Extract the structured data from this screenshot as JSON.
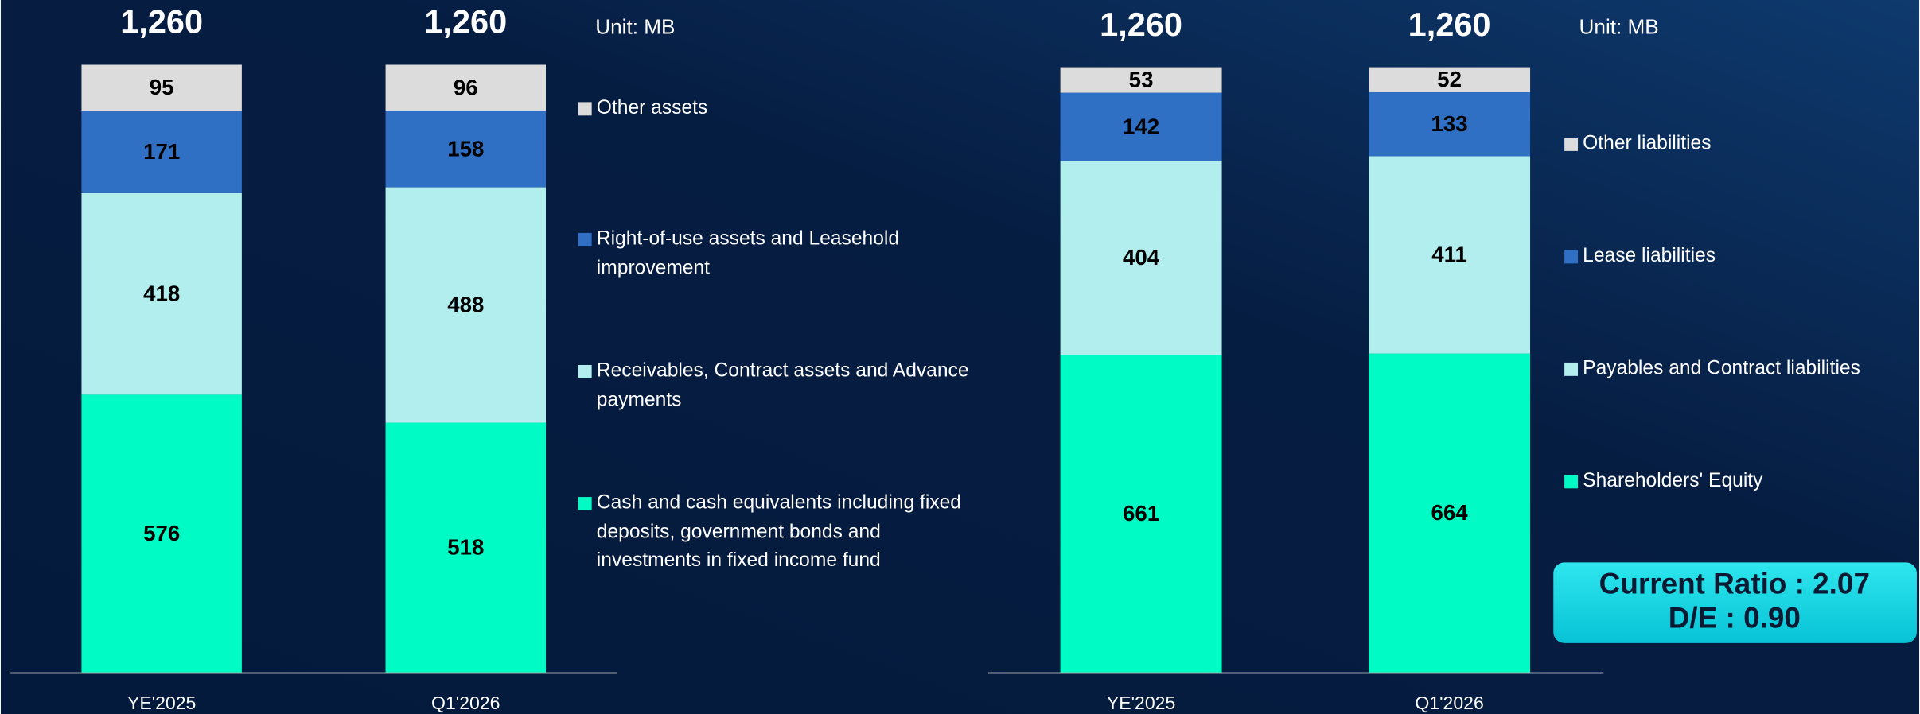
{
  "chart_data": [
    {
      "type": "stacked_bar",
      "unit": "Unit: MB",
      "categories": [
        "YE'2025",
        "Q1'2026"
      ],
      "totals": [
        1260,
        1260
      ],
      "total_labels": [
        "1,260",
        "1,260"
      ],
      "ylim": [
        0,
        1260
      ],
      "series": [
        {
          "name": "Cash and cash equivalents including fixed deposits, government bonds and investments in fixed income fund",
          "color": "#00fcc4",
          "values": [
            576,
            518
          ]
        },
        {
          "name": "Receivables, Contract assets and Advance payments",
          "color": "#b2eeee",
          "values": [
            418,
            488
          ]
        },
        {
          "name": "Right-of-use assets and Leasehold improvement",
          "color": "#2f6fc4",
          "values": [
            171,
            158
          ]
        },
        {
          "name": "Other assets",
          "color": "#dcdcdc",
          "values": [
            95,
            96
          ]
        }
      ]
    },
    {
      "type": "stacked_bar",
      "unit": "Unit: MB",
      "categories": [
        "YE'2025",
        "Q1'2026"
      ],
      "totals": [
        1260,
        1260
      ],
      "total_labels": [
        "1,260",
        "1,260"
      ],
      "ylim": [
        0,
        1260
      ],
      "series": [
        {
          "name": "Shareholders' Equity",
          "color": "#00fcc4",
          "values": [
            661,
            664
          ]
        },
        {
          "name": "Payables and Contract liabilities",
          "color": "#b2eeee",
          "values": [
            404,
            411
          ]
        },
        {
          "name": "Lease liabilities",
          "color": "#2f6fc4",
          "values": [
            142,
            133
          ]
        },
        {
          "name": "Other liabilities",
          "color": "#dcdcdc",
          "values": [
            53,
            52
          ]
        }
      ]
    }
  ],
  "annotations": [
    "Current Ratio : 2.07",
    "D/E : 0.90"
  ]
}
